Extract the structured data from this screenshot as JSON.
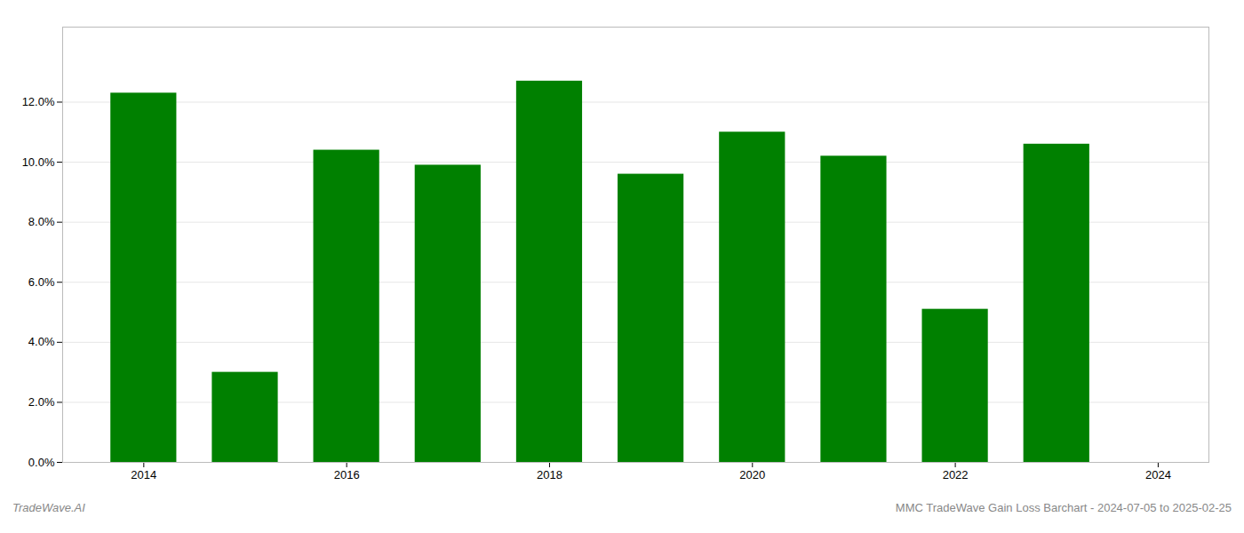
{
  "chart_data": {
    "type": "bar",
    "x": [
      2014,
      2015,
      2016,
      2017,
      2018,
      2019,
      2020,
      2021,
      2022,
      2023
    ],
    "values": [
      0.123,
      0.03,
      0.104,
      0.099,
      0.127,
      0.096,
      0.11,
      0.102,
      0.051,
      0.106
    ],
    "color": "#008000",
    "xlim": [
      2013.2,
      2024.5
    ],
    "xticks": [
      2014,
      2016,
      2018,
      2020,
      2022,
      2024
    ],
    "ylim": [
      0,
      0.145
    ],
    "yticks": [
      {
        "value": 0.0,
        "label": "0.0%"
      },
      {
        "value": 0.02,
        "label": "2.0%"
      },
      {
        "value": 0.04,
        "label": "4.0%"
      },
      {
        "value": 0.06,
        "label": "6.0%"
      },
      {
        "value": 0.08,
        "label": "8.0%"
      },
      {
        "value": 0.1,
        "label": "10.0%"
      },
      {
        "value": 0.12,
        "label": "12.0%"
      }
    ],
    "grid": true,
    "annotations": [
      "TradeWave.AI",
      "MMC TradeWave Gain Loss Barchart - 2024-07-05 to 2025-02-25"
    ]
  }
}
